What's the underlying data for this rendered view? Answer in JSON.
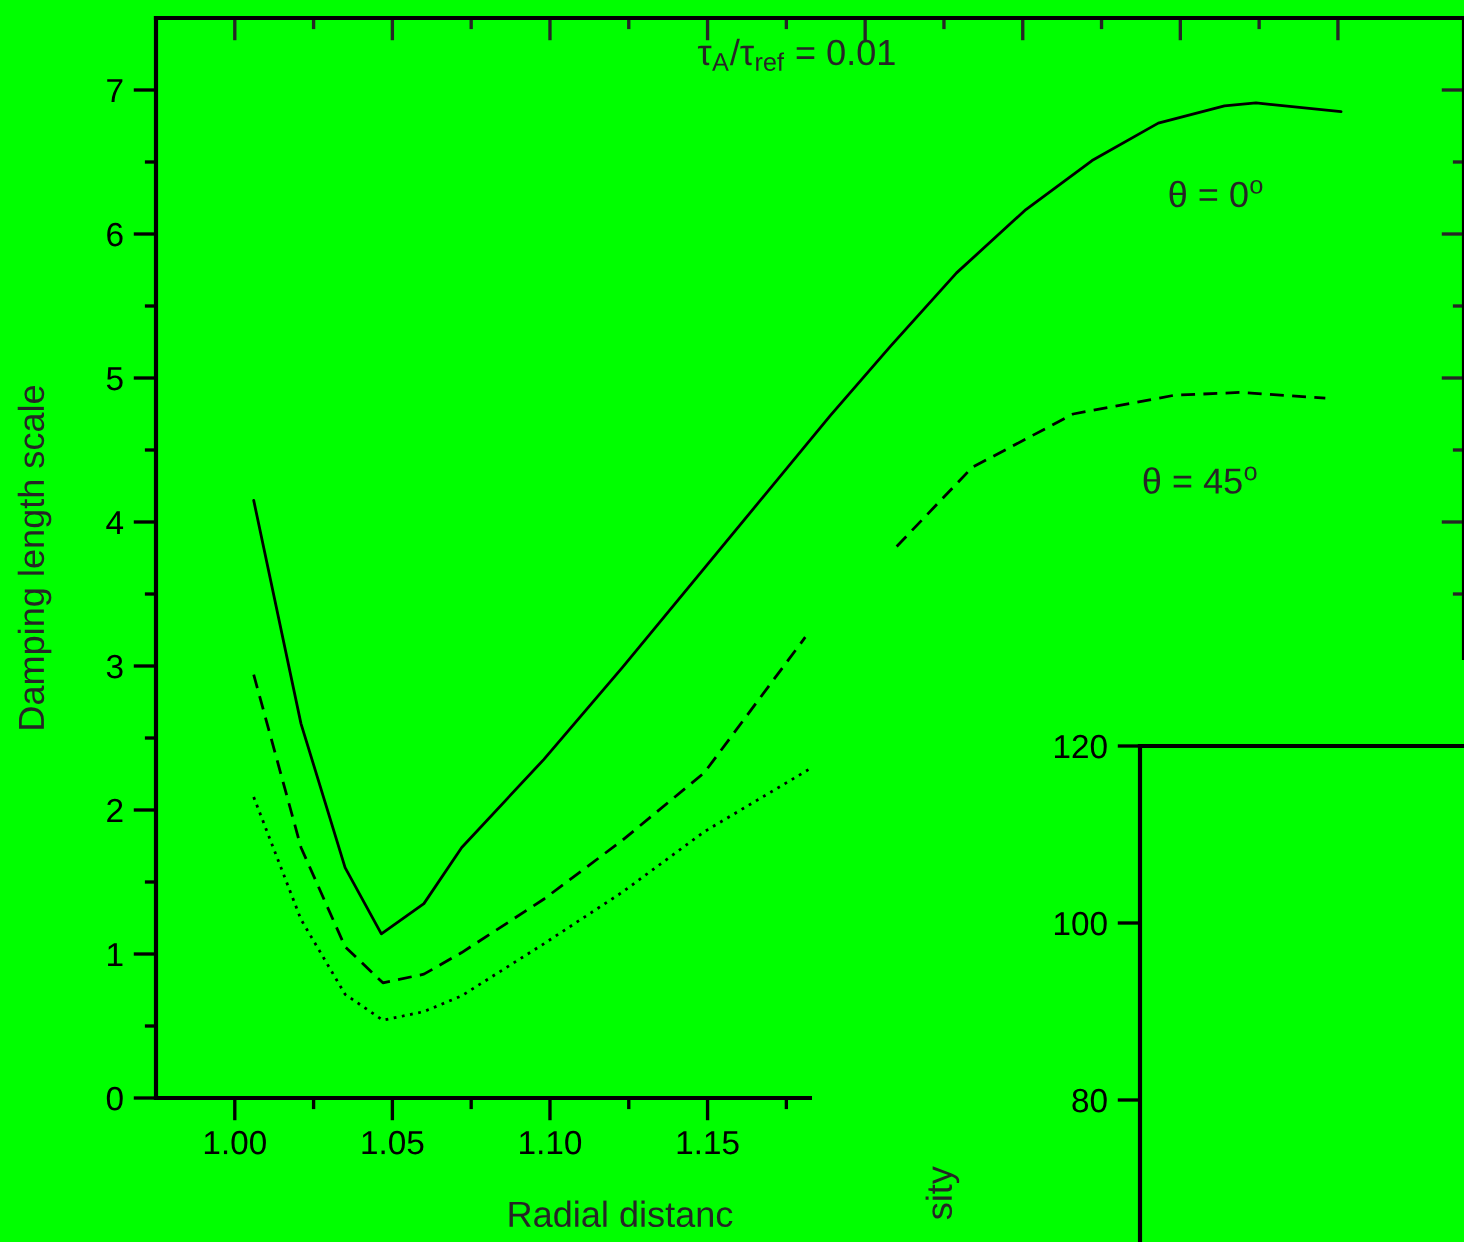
{
  "chart_data": [
    {
      "type": "line",
      "xlabel": "Radial distanc",
      "ylabel": "Damping length scale",
      "annotations": [
        "τ$_{A}$/τ$_{ref}$ = 0.01"
      ],
      "xlim": [
        0.975,
        1.39
      ],
      "ylim": [
        0,
        7.5
      ],
      "xticks": [
        {
          "value": 1.0,
          "label": "1.00"
        },
        {
          "value": 1.05,
          "label": "1.05"
        },
        {
          "value": 1.1,
          "label": "1.10"
        },
        {
          "value": 1.15,
          "label": "1.15"
        },
        {
          "value": 1.2,
          "label": null
        },
        {
          "value": 1.25,
          "label": null
        },
        {
          "value": 1.3,
          "label": null
        },
        {
          "value": 1.35,
          "label": null
        }
      ],
      "yticks": [
        0,
        1,
        2,
        3,
        4,
        5,
        6,
        7
      ],
      "grid": false,
      "legend": false,
      "series": [
        {
          "name": "θ = 0$^{o}$",
          "color": "#000000",
          "line_style": "solid",
          "x": [
            1.006,
            1.021,
            1.035,
            1.0465,
            1.06,
            1.072,
            1.098,
            1.123,
            1.149,
            1.189,
            1.208,
            1.229,
            1.251,
            1.272,
            1.293,
            1.314,
            1.324,
            1.351
          ],
          "values": [
            4.15,
            2.6,
            1.6,
            1.14,
            1.35,
            1.74,
            2.35,
            2.99,
            3.68,
            4.74,
            5.22,
            5.73,
            6.17,
            6.51,
            6.77,
            6.89,
            6.91,
            6.85
          ]
        },
        {
          "name": "θ = 45$^{o}$",
          "color": "#000000",
          "line_style": "dashed",
          "x": [
            1.006,
            1.021,
            1.035,
            1.047,
            1.06,
            1.072,
            1.098,
            1.123,
            1.149,
            1.181,
            1.195,
            1.21,
            1.234,
            1.266,
            1.298,
            1.319,
            1.346
          ],
          "values": [
            2.94,
            1.74,
            1.05,
            0.8,
            0.86,
            1.01,
            1.38,
            1.79,
            2.26,
            3.2,
            null,
            3.83,
            4.38,
            4.75,
            4.88,
            4.9,
            4.86
          ]
        },
        {
          "color": "#000000",
          "line_style": "dotted",
          "x": [
            1.006,
            1.021,
            1.035,
            1.047,
            1.06,
            1.072,
            1.098,
            1.123,
            1.149,
            1.182
          ],
          "values": [
            2.09,
            1.24,
            0.72,
            0.54,
            0.6,
            0.71,
            1.07,
            1.43,
            1.85,
            2.28
          ]
        }
      ]
    },
    {
      "type": "other",
      "ylabel": "sity",
      "annotations": [
        "120",
        "100",
        "80"
      ]
    }
  ]
}
